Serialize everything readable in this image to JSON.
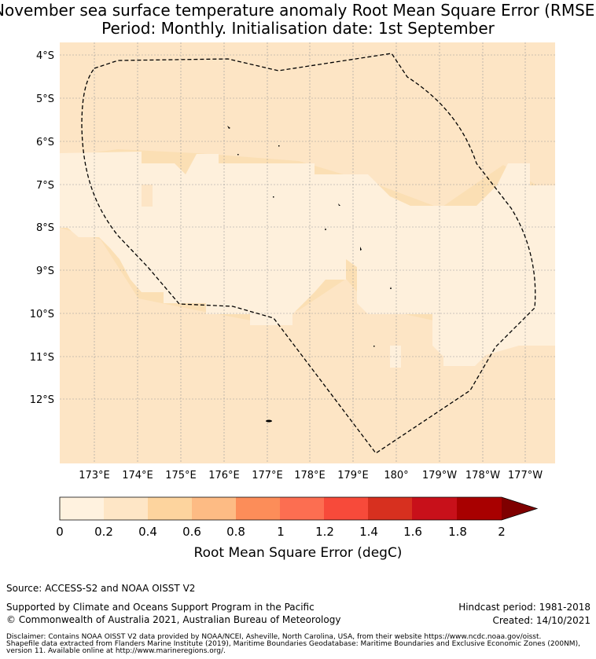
{
  "title": {
    "line1": "November sea surface temperature anomaly Root Mean Square Error (RMSE)",
    "line2": "Period: Monthly. Initialisation date: 1st September"
  },
  "map": {
    "lat_labels": [
      "4°S",
      "5°S",
      "6°S",
      "7°S",
      "8°S",
      "9°S",
      "10°S",
      "11°S",
      "12°S"
    ],
    "lon_labels": [
      "173°E",
      "174°E",
      "175°E",
      "176°E",
      "177°E",
      "178°E",
      "179°E",
      "180°",
      "179°W",
      "178°W",
      "177°W"
    ],
    "colors": {
      "ocean_low": "#fef0dc",
      "ocean_mid": "#fde5c5",
      "ocean_high": "#fbdfb4",
      "boundary": "#000000",
      "grid": "#999999"
    }
  },
  "colorbar": {
    "ticks": [
      "0",
      "0.2",
      "0.4",
      "0.6",
      "0.8",
      "1",
      "1.2",
      "1.4",
      "1.6",
      "1.8",
      "2"
    ],
    "colors": [
      "#fff2df",
      "#fee6c6",
      "#fdd49e",
      "#fdbb84",
      "#fc8d59",
      "#fc6e51",
      "#f74a3a",
      "#d7301f",
      "#c8101a",
      "#a80000"
    ],
    "extend_color": "#7f0000",
    "label": "Root Mean Square Error (degC)"
  },
  "footer": {
    "source": "Source: ACCESS-S2 and NOAA OISST V2",
    "support": "Supported by Climate and Oceans Support Program in the Pacific",
    "copyright": "© Commonwealth of Australia 2021, Australian Bureau of Meteorology",
    "hindcast": "Hindcast period: 1981-2018",
    "created": "Created: 14/10/2021",
    "disclaimer": [
      "Disclaimer: Contains NOAA OISST V2 data provided by NOAA/NCEI, Asheville, North Carolina, USA, from their website https://www.ncdc.noaa.gov/oisst.",
      "Shapefile data extracted from Flanders Marine Institute (2019), Maritime Boundaries Geodatabase: Maritime Boundaries and Exclusive Economic Zones (200NM),",
      "version 11. Available online at http://www.marineregions.org/."
    ]
  }
}
